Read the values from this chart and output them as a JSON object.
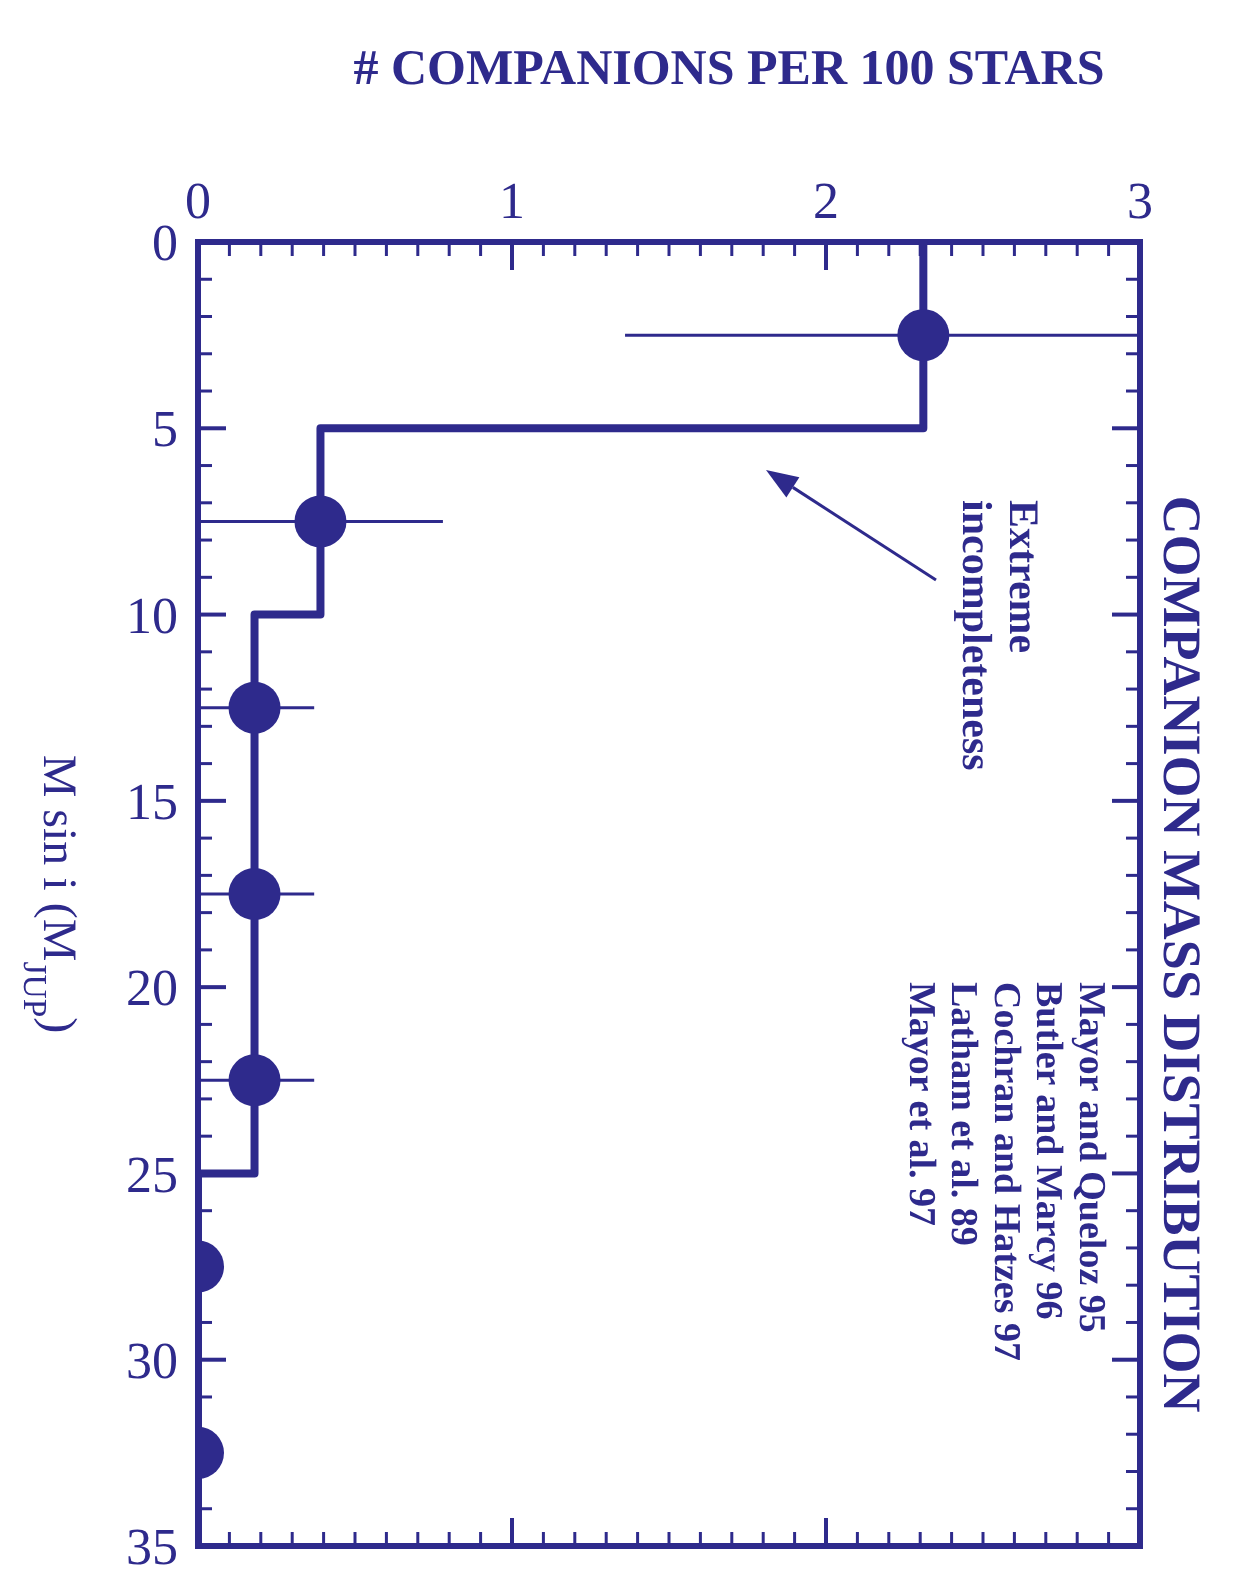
{
  "chart_data": {
    "type": "histogram",
    "orientation": "horizontal",
    "title": "COMPANION MASS DISTRIBUTION",
    "xlabel": "# COMPANIONS PER 100 STARS",
    "ylabel": "M sin i (M$_{JUP}$)",
    "annotations": [
      "Extreme\nincompleteness",
      "Mayor and Queloz 95\nButler and Marcy 96\nCochran and Hatzes 97\nLatham et al. 89\nMayor et al. 97"
    ],
    "xlim": [
      0,
      3
    ],
    "xticks": [
      0,
      1,
      2,
      3
    ],
    "ylim": [
      35,
      0
    ],
    "yticks": [
      0,
      5,
      10,
      15,
      20,
      25,
      30,
      35
    ],
    "marker": "circle",
    "series": [
      {
        "color": "#2e2a8c",
        "bins": [
          0,
          5,
          10,
          15,
          20,
          25,
          30,
          35
        ],
        "values": [
          2.31,
          0.39,
          0.18,
          0.18,
          0.18,
          0,
          0
        ]
      },
      {
        "type": "scatter",
        "color": "#2e2a8c",
        "x": [
          2.5,
          7.5,
          12.5,
          17.5,
          22.5,
          27.5,
          32.5
        ],
        "values": [
          2.31,
          0.39,
          0.18,
          0.18,
          0.18,
          0,
          0
        ],
        "errors": [
          [
            1.36,
            3
          ],
          [
            0,
            0.78
          ],
          [
            0,
            0.37
          ],
          [
            0,
            0.37
          ],
          [
            0,
            0.37
          ],
          null,
          null
        ]
      }
    ]
  }
}
